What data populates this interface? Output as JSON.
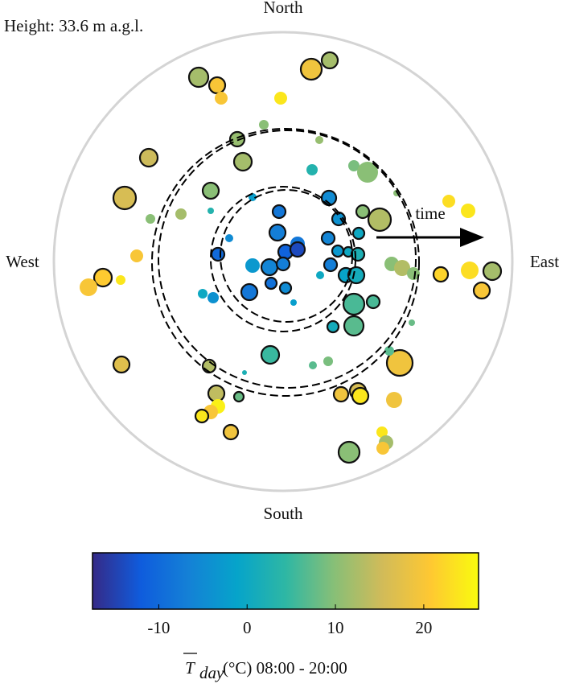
{
  "chart_data": {
    "type": "polar-scatter",
    "height_label": "Height:  33.6 m a.g.l.",
    "directions": {
      "north": "North",
      "south": "South",
      "west": "West",
      "east": "East"
    },
    "arrow_label": "time",
    "colorbar_label": {
      "symbol": "T",
      "subscript": "day",
      "text": "(°C) 08:00 - 20:00"
    },
    "xlim": [
      -285,
      285
    ],
    "ylim": [
      -285,
      285
    ],
    "clim": [
      -17.5,
      26.2
    ],
    "cticks": [
      -10,
      0,
      10,
      20
    ],
    "colormap": [
      "#352a87",
      "#0f5cdd",
      "#1481d6",
      "#06a4ca",
      "#2eb7a4",
      "#87bf77",
      "#d1bb59",
      "#fec832",
      "#f9fb0e"
    ],
    "x": [
      -105,
      -82,
      -77,
      35,
      58,
      -3,
      -24,
      -57,
      -167,
      -50,
      45,
      36,
      88,
      105,
      -197,
      -90,
      -127,
      -165,
      -90,
      57,
      99,
      120,
      141,
      206,
      230,
      -38,
      -182,
      -224,
      -242,
      -202,
      -81,
      -67,
      -7,
      -5,
      18,
      3,
      18,
      -38,
      -17,
      0,
      -15,
      -42,
      3,
      -87,
      -100,
      56,
      69,
      59,
      68,
      81,
      93,
      94,
      78,
      91,
      46,
      88,
      112,
      62,
      13,
      88,
      135,
      148,
      162,
      260,
      232,
      196,
      247,
      160,
      -16,
      56,
      37,
      145,
      132,
      -201,
      -92,
      -48,
      -83,
      -55,
      -81,
      -90,
      -101,
      72,
      93,
      96,
      138,
      -65,
      123,
      128,
      124,
      82
    ],
    "y": [
      229,
      219,
      203,
      239,
      250,
      203,
      170,
      152,
      129,
      124,
      151,
      114,
      119,
      111,
      79,
      88,
      59,
      53,
      63,
      79,
      62,
      52,
      85,
      75,
      63,
      80,
      7,
      -20,
      -32,
      -23,
      9,
      29,
      36,
      62,
      22,
      12,
      15,
      -5,
      -7,
      -3,
      -27,
      -38,
      -33,
      -45,
      -40,
      29,
      53,
      -4,
      13,
      12,
      9,
      35,
      -17,
      -17,
      -17,
      -53,
      -50,
      -81,
      -51,
      -80,
      -3,
      -8,
      -15,
      -12,
      -11,
      -16,
      -36,
      -76,
      -116,
      -124,
      -129,
      -126,
      -111,
      -128,
      -130,
      -138,
      -164,
      -168,
      -180,
      -187,
      -192,
      -165,
      -161,
      -167,
      -172,
      -212,
      -212,
      -225,
      -232,
      -237
    ],
    "values": [
      12,
      20,
      20,
      19,
      12,
      24,
      10,
      11,
      15,
      12,
      11,
      3,
      9,
      10,
      16,
      10,
      12,
      10,
      3,
      -5,
      10,
      13,
      10,
      23,
      24,
      -2,
      20,
      21,
      20,
      24,
      -10,
      -5,
      -7,
      -8,
      -8,
      -11,
      -14,
      -3,
      -6,
      -7,
      -9,
      -8,
      -5,
      -4,
      0,
      -6,
      -4,
      -7,
      -3,
      0,
      2,
      0,
      -1,
      1,
      0,
      6,
      6,
      1,
      -2,
      7,
      10,
      13,
      10,
      12,
      23,
      22,
      20,
      8,
      5,
      9,
      7,
      19,
      7,
      17,
      13,
      2,
      14,
      8,
      25,
      20,
      24,
      19,
      16,
      24,
      19,
      19,
      24,
      12,
      20,
      10
    ],
    "sizes": [
      12,
      10,
      8,
      13,
      10,
      8,
      6,
      9,
      11,
      11,
      5,
      7,
      7,
      13,
      14,
      10,
      7,
      6,
      4,
      9,
      8,
      14,
      4,
      8,
      9,
      5,
      8,
      11,
      11,
      6,
      8,
      5,
      10,
      8,
      9,
      9,
      9,
      9,
      10,
      8,
      7,
      10,
      7,
      7,
      6,
      8,
      8,
      8,
      7,
      6,
      8,
      7,
      9,
      10,
      5,
      13,
      8,
      7,
      4,
      12,
      9,
      10,
      8,
      11,
      11,
      9,
      10,
      4,
      11,
      6,
      5,
      16,
      6,
      10,
      8,
      3,
      10,
      6,
      9,
      9,
      8,
      9,
      10,
      10,
      10,
      9,
      7,
      9,
      8,
      13
    ],
    "outlined": [
      true,
      true,
      false,
      true,
      true,
      false,
      false,
      true,
      true,
      true,
      false,
      false,
      false,
      false,
      true,
      true,
      false,
      false,
      false,
      true,
      true,
      true,
      false,
      false,
      false,
      false,
      false,
      true,
      false,
      false,
      true,
      false,
      true,
      true,
      false,
      true,
      true,
      false,
      true,
      true,
      true,
      true,
      true,
      false,
      false,
      true,
      true,
      true,
      true,
      true,
      true,
      true,
      true,
      true,
      false,
      true,
      true,
      true,
      false,
      true,
      false,
      false,
      false,
      true,
      false,
      true,
      true,
      false,
      true,
      false,
      false,
      true,
      false,
      true,
      true,
      false,
      true,
      true,
      false,
      false,
      true,
      true,
      true,
      true,
      false,
      true,
      false,
      false,
      false,
      true
    ]
  }
}
